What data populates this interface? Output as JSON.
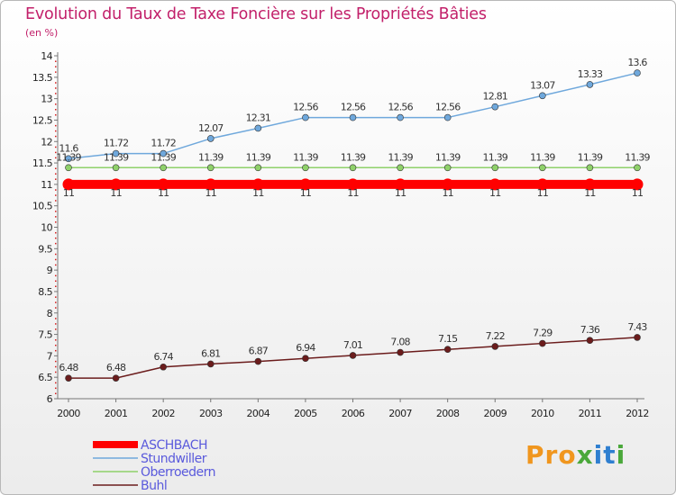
{
  "header": {
    "title": "Evolution du Taux de Taxe Foncière sur les Propriétés Bâties",
    "unit": "(en %)"
  },
  "logo": {
    "text": "Proxiti"
  },
  "chart_data": {
    "type": "line",
    "title": "Evolution du Taux de Taxe Foncière sur les Propriétés Bâties",
    "ylabel": "(en %)",
    "xlabel": "",
    "ylim": [
      6,
      14
    ],
    "ytick_step": 0.5,
    "grid": false,
    "legend_position": "bottom-left",
    "categories": [
      "2000",
      "2001",
      "2002",
      "2003",
      "2004",
      "2005",
      "2006",
      "2007",
      "2008",
      "2009",
      "2010",
      "2011",
      "2012"
    ],
    "y_tick_labels": [
      "6",
      "6.5",
      "7",
      "7.5",
      "8",
      "8.5",
      "9",
      "9.5",
      "10",
      "10.5",
      "11",
      "11.5",
      "12",
      "12.5",
      "13",
      "13.5",
      "14"
    ],
    "series": [
      {
        "name": "ASCHBACH",
        "color": "#ff0000",
        "bold": true,
        "values": [
          11,
          11,
          11,
          11,
          11,
          11,
          11,
          11,
          11,
          11,
          11,
          11,
          11
        ],
        "labels": [
          "11",
          "11",
          "11",
          "11",
          "11",
          "11",
          "11",
          "11",
          "11",
          "11",
          "11",
          "11",
          "11"
        ]
      },
      {
        "name": "Stundwiller",
        "color": "#6fa8dc",
        "bold": false,
        "values": [
          11.6,
          11.72,
          11.72,
          12.07,
          12.31,
          12.56,
          12.56,
          12.56,
          12.56,
          12.81,
          13.07,
          13.33,
          13.6
        ],
        "labels": [
          "11.6",
          "11.72",
          "11.72",
          "12.07",
          "12.31",
          "12.56",
          "12.56",
          "12.56",
          "12.56",
          "12.81",
          "13.07",
          "13.33",
          "13.6"
        ]
      },
      {
        "name": "Oberroedern",
        "color": "#8fd16a",
        "bold": false,
        "values": [
          11.39,
          11.39,
          11.39,
          11.39,
          11.39,
          11.39,
          11.39,
          11.39,
          11.39,
          11.39,
          11.39,
          11.39,
          11.39
        ],
        "labels": [
          "11.39",
          "11.39",
          "11.39",
          "11.39",
          "11.39",
          "11.39",
          "11.39",
          "11.39",
          "11.39",
          "11.39",
          "11.39",
          "11.39",
          "11.39"
        ]
      },
      {
        "name": "Buhl",
        "color": "#6b1c1c",
        "bold": false,
        "values": [
          6.48,
          6.48,
          6.74,
          6.81,
          6.87,
          6.94,
          7.01,
          7.08,
          7.15,
          7.22,
          7.29,
          7.36,
          7.43
        ],
        "labels": [
          "6.48",
          "6.48",
          "6.74",
          "6.81",
          "6.87",
          "6.94",
          "7.01",
          "7.08",
          "7.15",
          "7.22",
          "7.29",
          "7.36",
          "7.43"
        ]
      }
    ]
  }
}
